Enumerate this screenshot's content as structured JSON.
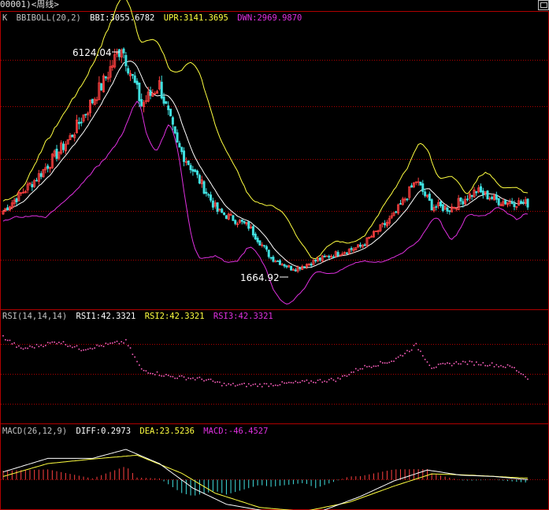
{
  "window": {
    "title": "00001)<周线>",
    "button_icon": "restore-window-icon"
  },
  "colors": {
    "background": "#000000",
    "frame": "#b00000",
    "grid": "#b00000",
    "candle_up": "#ff4040",
    "candle_down": "#40e0e0",
    "upr": "#ffff40",
    "bbi": "#ffffff",
    "dwn": "#e030e0",
    "rsi": "#ff60c0",
    "diff": "#ffffff",
    "dea": "#ffff40",
    "hist_pos": "#ff4040",
    "hist_neg": "#40e0e0",
    "header_text": "#c0c0c0"
  },
  "main_panel": {
    "prefix": "K",
    "indicator": "BBIBOLL(20,2)",
    "bbi_text": "BBI:3055.6782",
    "upr_text": "UPR:3141.3695",
    "dwn_text": "DWN:2969.9870",
    "high_label": "6124.04",
    "low_label": "1664.92"
  },
  "rsi_panel": {
    "indicator": "RSI(14,14,14)",
    "rsi1_text": "RSI1:42.3321",
    "rsi2_text": "RSI2:42.3321",
    "rsi3_text": "RSI3:42.3321"
  },
  "macd_panel": {
    "indicator": "MACD(26,12,9)",
    "diff_text": "DIFF:0.2973",
    "dea_text": "DEA:23.5236",
    "macd_text": "MACD:-46.4527"
  },
  "chart_data": [
    {
      "type": "candlestick",
      "title": "BBIBOLL(20,2)",
      "period": "weekly",
      "ylim": [
        1500,
        6400
      ],
      "high": 6124.04,
      "low": 1664.92,
      "anchors": [
        {
          "i": 0,
          "v": 2850
        },
        {
          "i": 15,
          "v": 3500
        },
        {
          "i": 30,
          "v": 4300
        },
        {
          "i": 45,
          "v": 5400
        },
        {
          "i": 53,
          "v": 6124
        },
        {
          "i": 62,
          "v": 4950
        },
        {
          "i": 70,
          "v": 5350
        },
        {
          "i": 78,
          "v": 4150
        },
        {
          "i": 88,
          "v": 3450
        },
        {
          "i": 96,
          "v": 2850
        },
        {
          "i": 110,
          "v": 2550
        },
        {
          "i": 120,
          "v": 1930
        },
        {
          "i": 130,
          "v": 1700
        },
        {
          "i": 145,
          "v": 1950
        },
        {
          "i": 160,
          "v": 2150
        },
        {
          "i": 175,
          "v": 2750
        },
        {
          "i": 185,
          "v": 3450
        },
        {
          "i": 192,
          "v": 2950
        },
        {
          "i": 200,
          "v": 2900
        },
        {
          "i": 212,
          "v": 3250
        },
        {
          "i": 222,
          "v": 3050
        },
        {
          "i": 235,
          "v": 3000
        }
      ],
      "series": [
        {
          "name": "BBI",
          "value": 3055.6782
        },
        {
          "name": "UPR",
          "value": 3141.3695
        },
        {
          "name": "DWN",
          "value": 2969.987
        }
      ]
    },
    {
      "type": "line",
      "title": "RSI(14,14,14)",
      "ylim": [
        0,
        100
      ],
      "gridlines": [
        80,
        50,
        20
      ],
      "anchors": [
        {
          "i": 0,
          "v": 85
        },
        {
          "i": 8,
          "v": 72
        },
        {
          "i": 25,
          "v": 80
        },
        {
          "i": 35,
          "v": 72
        },
        {
          "i": 55,
          "v": 80
        },
        {
          "i": 62,
          "v": 50
        },
        {
          "i": 75,
          "v": 43
        },
        {
          "i": 90,
          "v": 40
        },
        {
          "i": 100,
          "v": 34
        },
        {
          "i": 115,
          "v": 34
        },
        {
          "i": 130,
          "v": 36
        },
        {
          "i": 150,
          "v": 40
        },
        {
          "i": 160,
          "v": 52
        },
        {
          "i": 175,
          "v": 60
        },
        {
          "i": 185,
          "v": 76
        },
        {
          "i": 192,
          "v": 53
        },
        {
          "i": 205,
          "v": 58
        },
        {
          "i": 218,
          "v": 56
        },
        {
          "i": 228,
          "v": 53
        },
        {
          "i": 235,
          "v": 42
        }
      ],
      "series": [
        {
          "name": "RSI1",
          "value": 42.3321
        },
        {
          "name": "RSI2",
          "value": 42.3321
        },
        {
          "name": "RSI3",
          "value": 42.3321
        }
      ]
    },
    {
      "type": "bar",
      "title": "MACD(26,12,9)",
      "ylim": [
        -560,
        560
      ],
      "diff_anchors": [
        {
          "i": 0,
          "v": 120
        },
        {
          "i": 20,
          "v": 330
        },
        {
          "i": 40,
          "v": 330
        },
        {
          "i": 55,
          "v": 470
        },
        {
          "i": 70,
          "v": 250
        },
        {
          "i": 85,
          "v": -130
        },
        {
          "i": 100,
          "v": -380
        },
        {
          "i": 120,
          "v": -500
        },
        {
          "i": 140,
          "v": -520
        },
        {
          "i": 160,
          "v": -260
        },
        {
          "i": 175,
          "v": -20
        },
        {
          "i": 190,
          "v": 150
        },
        {
          "i": 205,
          "v": 70
        },
        {
          "i": 220,
          "v": 50
        },
        {
          "i": 235,
          "v": 0.2973
        }
      ],
      "dea_anchors": [
        {
          "i": 0,
          "v": 50
        },
        {
          "i": 20,
          "v": 250
        },
        {
          "i": 40,
          "v": 320
        },
        {
          "i": 60,
          "v": 380
        },
        {
          "i": 80,
          "v": 100
        },
        {
          "i": 95,
          "v": -210
        },
        {
          "i": 115,
          "v": -430
        },
        {
          "i": 135,
          "v": -490
        },
        {
          "i": 155,
          "v": -350
        },
        {
          "i": 175,
          "v": -100
        },
        {
          "i": 192,
          "v": 90
        },
        {
          "i": 210,
          "v": 70
        },
        {
          "i": 235,
          "v": 23.5236
        }
      ],
      "series": [
        {
          "name": "DIFF",
          "value": 0.2973
        },
        {
          "name": "DEA",
          "value": 23.5236
        },
        {
          "name": "MACD",
          "value": -46.4527
        }
      ]
    }
  ]
}
